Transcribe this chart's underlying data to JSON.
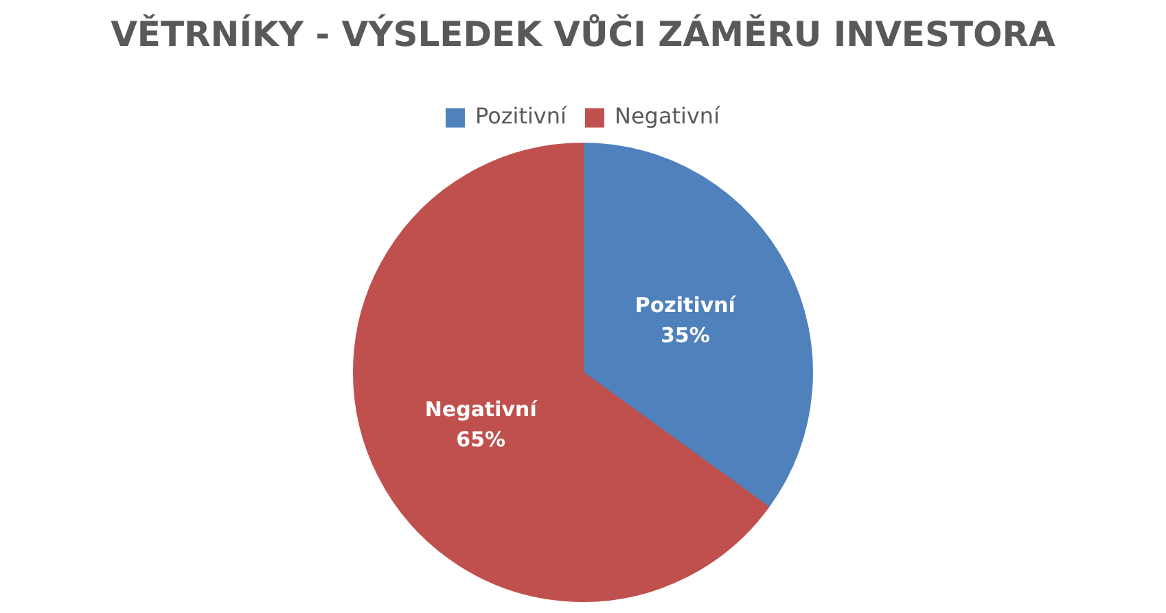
{
  "chart_data": {
    "type": "pie",
    "title": "VĚTRNÍKY - VÝSLEDEK VŮČI ZÁMĚRU INVESTORA",
    "categories": [
      "Pozitivní",
      "Negativní"
    ],
    "values": [
      35,
      65
    ],
    "value_labels": [
      "35%",
      "65%"
    ],
    "colors": [
      "#4f81bd",
      "#c0504d"
    ],
    "legend": "top"
  }
}
